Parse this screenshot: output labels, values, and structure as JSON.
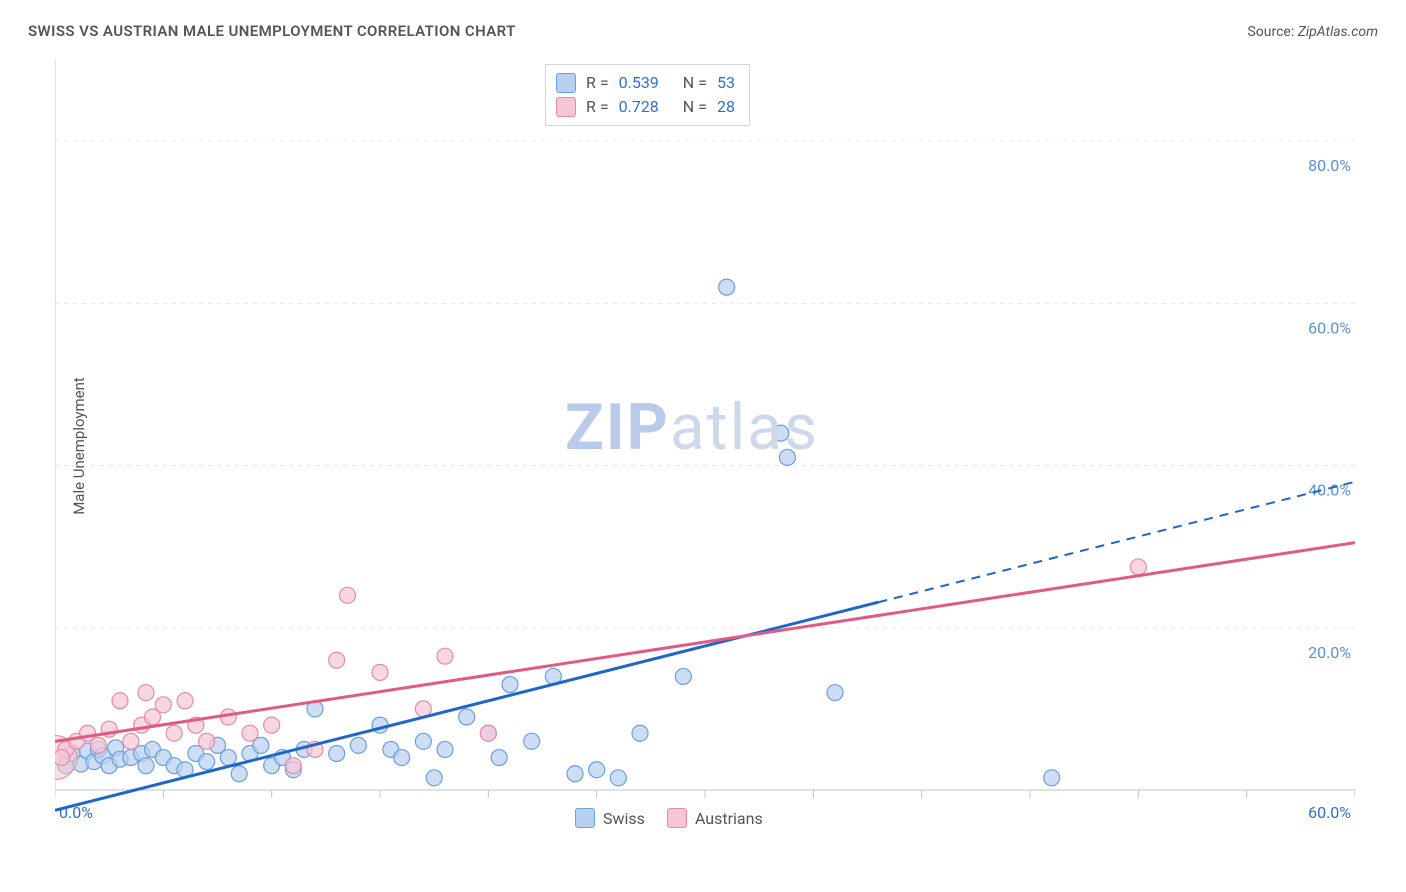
{
  "header": {
    "title": "SWISS VS AUSTRIAN MALE UNEMPLOYMENT CORRELATION CHART",
    "source_label": "Source:",
    "source_site": "ZipAtlas.com"
  },
  "y_axis_label": "Male Unemployment",
  "watermark": {
    "zip": "ZIP",
    "atlas": "atlas"
  },
  "chart": {
    "type": "scatter",
    "background_color": "#ffffff",
    "grid_color": "#e8e8e8",
    "axis_color": "#bfc5cc",
    "tick_color": "#bfc5cc",
    "x": {
      "min": 0,
      "max": 60,
      "ticks": [
        0,
        5,
        10,
        15,
        20,
        25,
        30,
        35,
        40,
        45,
        50,
        55,
        60
      ],
      "label_min": "0.0%",
      "label_max": "60.0%",
      "label_color": "#2f6fd1"
    },
    "y": {
      "min": 0,
      "max": 90,
      "grid_at": [
        20,
        40,
        60,
        80
      ],
      "labels": [
        "20.0%",
        "40.0%",
        "60.0%",
        "80.0%"
      ],
      "label_color": "#5a8fd6"
    },
    "stats_box": {
      "rows": [
        {
          "swatch_fill": "#b8d0f0",
          "swatch_stroke": "#6a9fe0",
          "r_label": "R =",
          "r": "0.539",
          "n_label": "N =",
          "n": "53"
        },
        {
          "swatch_fill": "#f6c6d4",
          "swatch_stroke": "#e68aa6",
          "r_label": "R =",
          "r": "0.728",
          "n_label": "N =",
          "n": "28"
        }
      ]
    },
    "legend": {
      "items": [
        {
          "swatch_fill": "#b8d0f0",
          "swatch_stroke": "#6a9fe0",
          "label": "Swiss"
        },
        {
          "swatch_fill": "#f6c6d4",
          "swatch_stroke": "#e68aa6",
          "label": "Austrians"
        }
      ]
    },
    "series": [
      {
        "name": "Swiss",
        "marker_fill": "#b8d0f0",
        "marker_stroke": "#6a9fe0",
        "marker_r": 8,
        "trend": {
          "stroke": "#1e66c9",
          "width": 3,
          "solid_to_x": 38,
          "dash_to_x": 60,
          "y_at_0": -2.5,
          "y_at_60": 38
        },
        "points": [
          [
            0.5,
            3
          ],
          [
            0.8,
            4.5
          ],
          [
            1.2,
            3.2
          ],
          [
            1.5,
            4.8
          ],
          [
            1.8,
            3.5
          ],
          [
            2.0,
            5.0
          ],
          [
            2.2,
            4.2
          ],
          [
            2.5,
            3.0
          ],
          [
            2.8,
            5.2
          ],
          [
            3.0,
            3.8
          ],
          [
            3.5,
            4.0
          ],
          [
            4.0,
            4.5
          ],
          [
            4.2,
            3.0
          ],
          [
            4.5,
            5.0
          ],
          [
            5.0,
            4.0
          ],
          [
            5.5,
            3.0
          ],
          [
            6.0,
            2.5
          ],
          [
            6.5,
            4.5
          ],
          [
            7.0,
            3.5
          ],
          [
            7.5,
            5.5
          ],
          [
            8.0,
            4.0
          ],
          [
            8.5,
            2.0
          ],
          [
            9.0,
            4.5
          ],
          [
            9.5,
            5.5
          ],
          [
            10.0,
            3.0
          ],
          [
            10.5,
            4.0
          ],
          [
            11.0,
            2.5
          ],
          [
            11.5,
            5.0
          ],
          [
            12.0,
            10.0
          ],
          [
            13.0,
            4.5
          ],
          [
            14.0,
            5.5
          ],
          [
            15.0,
            8.0
          ],
          [
            15.5,
            5.0
          ],
          [
            16.0,
            4.0
          ],
          [
            17.0,
            6.0
          ],
          [
            17.5,
            1.5
          ],
          [
            18.0,
            5.0
          ],
          [
            19.0,
            9.0
          ],
          [
            20.0,
            7.0
          ],
          [
            20.5,
            4.0
          ],
          [
            21.0,
            13.0
          ],
          [
            22.0,
            6.0
          ],
          [
            23.0,
            14.0
          ],
          [
            24.0,
            2.0
          ],
          [
            25.0,
            2.5
          ],
          [
            26.0,
            1.5
          ],
          [
            27.0,
            7.0
          ],
          [
            29.0,
            14.0
          ],
          [
            31.0,
            62.0
          ],
          [
            33.5,
            44.0
          ],
          [
            33.8,
            41.0
          ],
          [
            36.0,
            12.0
          ],
          [
            46.0,
            1.5
          ]
        ]
      },
      {
        "name": "Austrians",
        "marker_fill": "#f6c6d4",
        "marker_stroke": "#e68aa6",
        "marker_r": 8,
        "trend": {
          "stroke": "#e05a85",
          "width": 3,
          "solid_to_x": 60,
          "dash_to_x": 60,
          "y_at_0": 6.0,
          "y_at_60": 30.5
        },
        "points": [
          [
            0.5,
            5.0
          ],
          [
            1.0,
            6.0
          ],
          [
            1.5,
            7.0
          ],
          [
            2.0,
            5.5
          ],
          [
            2.5,
            7.5
          ],
          [
            3.0,
            11.0
          ],
          [
            3.5,
            6.0
          ],
          [
            4.0,
            8.0
          ],
          [
            4.2,
            12.0
          ],
          [
            4.5,
            9.0
          ],
          [
            5.0,
            10.5
          ],
          [
            5.5,
            7.0
          ],
          [
            6.0,
            11.0
          ],
          [
            6.5,
            8.0
          ],
          [
            7.0,
            6.0
          ],
          [
            8.0,
            9.0
          ],
          [
            9.0,
            7.0
          ],
          [
            10.0,
            8.0
          ],
          [
            11.0,
            3.0
          ],
          [
            12.0,
            5.0
          ],
          [
            13.0,
            16.0
          ],
          [
            13.5,
            24.0
          ],
          [
            15.0,
            14.5
          ],
          [
            17.0,
            10.0
          ],
          [
            18.0,
            16.5
          ],
          [
            20.0,
            7.0
          ],
          [
            50.0,
            27.5
          ],
          [
            0.3,
            4.0
          ]
        ],
        "big_point": {
          "x": 0.0,
          "y": 4.0,
          "r": 22
        }
      }
    ]
  }
}
